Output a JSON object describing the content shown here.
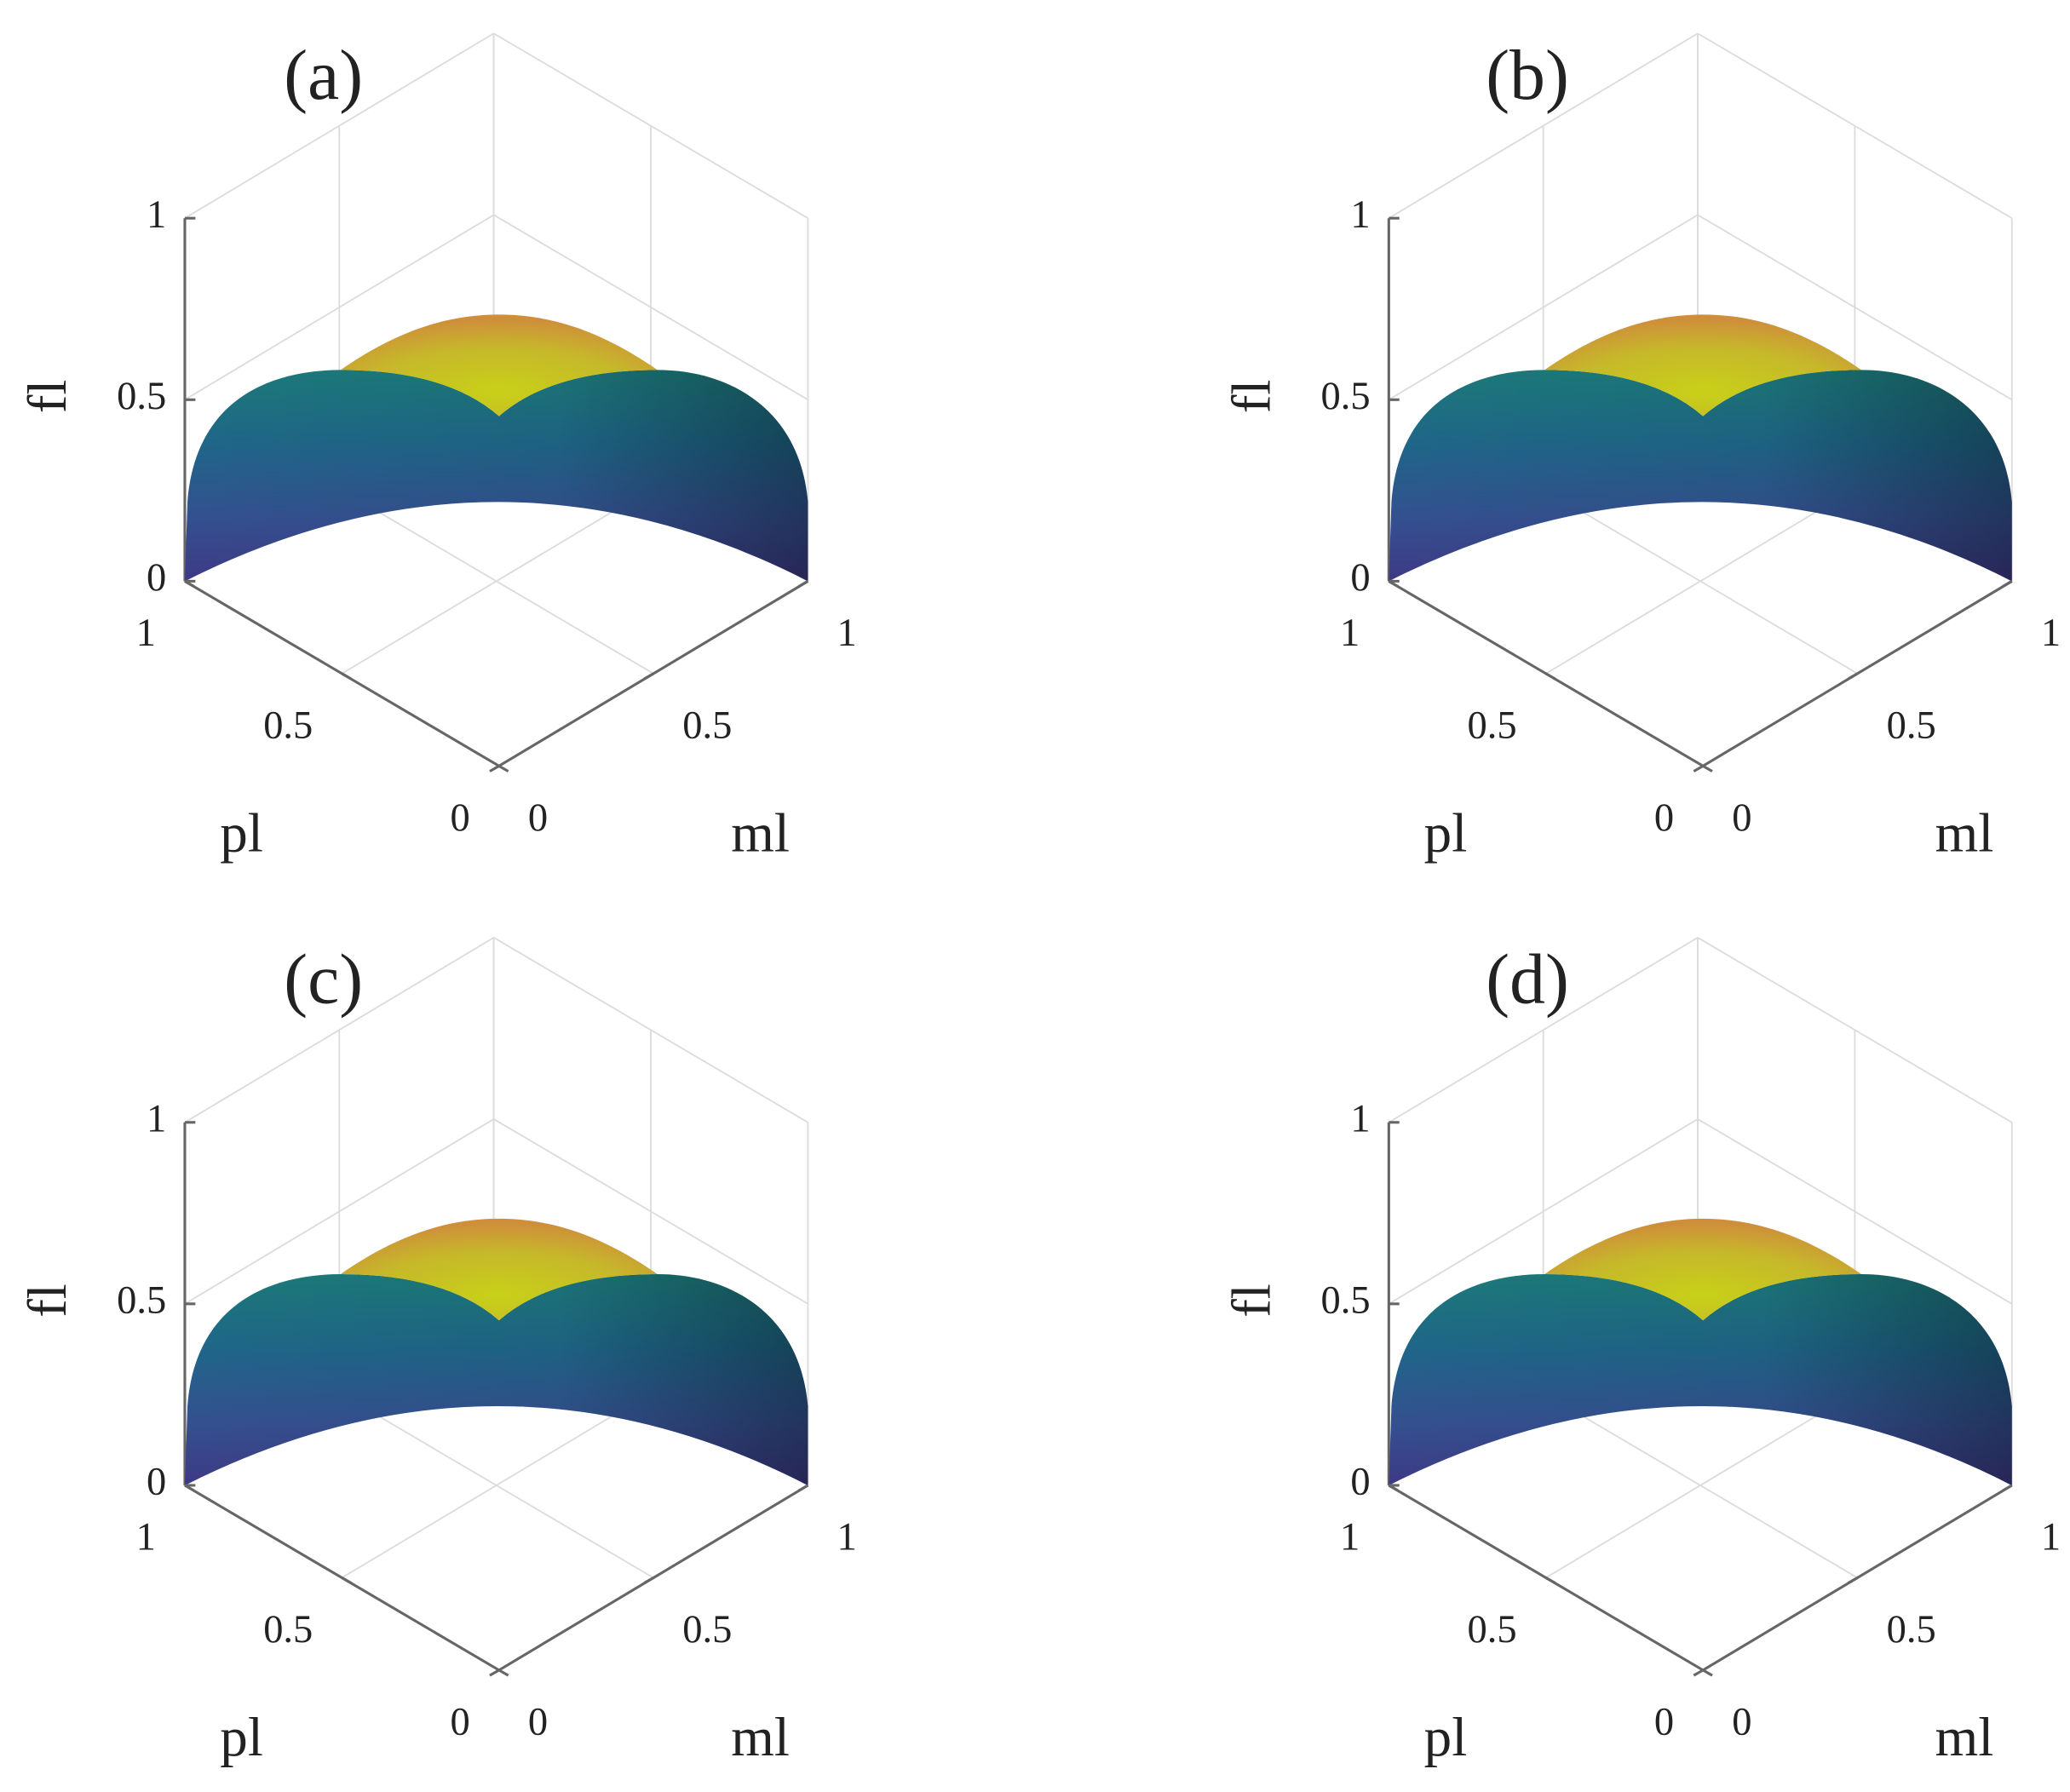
{
  "chart_data": [
    {
      "type": "surface",
      "title": "(a)",
      "xlabel": "ml",
      "ylabel": "pl",
      "zlabel": "fl",
      "xlim": [
        0,
        1
      ],
      "xticks": [
        0,
        0.5,
        1
      ],
      "ylim": [
        0,
        1
      ],
      "yticks": [
        0,
        0.5,
        1
      ],
      "zlim": [
        0,
        1
      ],
      "zticks": [
        0,
        0.5,
        1
      ],
      "grid": true
    },
    {
      "type": "surface",
      "title": "(b)",
      "xlabel": "ml",
      "ylabel": "pl",
      "zlabel": "fl",
      "xlim": [
        0,
        1
      ],
      "xticks": [
        0,
        0.5,
        1
      ],
      "ylim": [
        0,
        1
      ],
      "yticks": [
        0,
        0.5,
        1
      ],
      "zlim": [
        0,
        1
      ],
      "zticks": [
        0,
        0.5,
        1
      ],
      "grid": true
    },
    {
      "type": "surface",
      "title": "(c)",
      "xlabel": "ml",
      "ylabel": "pl",
      "zlabel": "fl",
      "xlim": [
        0,
        1
      ],
      "xticks": [
        0,
        0.5,
        1
      ],
      "ylim": [
        0,
        1
      ],
      "yticks": [
        0,
        0.5,
        1
      ],
      "zlim": [
        0,
        1
      ],
      "zticks": [
        0,
        0.5,
        1
      ],
      "grid": true
    },
    {
      "type": "surface",
      "title": "(d)",
      "xlabel": "ml",
      "ylabel": "pl",
      "zlabel": "fl",
      "xlim": [
        0,
        1
      ],
      "xticks": [
        0,
        0.5,
        1
      ],
      "ylim": [
        0,
        1
      ],
      "yticks": [
        0,
        0.5,
        1
      ],
      "zlim": [
        0,
        1
      ],
      "zticks": [
        0,
        0.5,
        1
      ],
      "grid": true
    }
  ]
}
